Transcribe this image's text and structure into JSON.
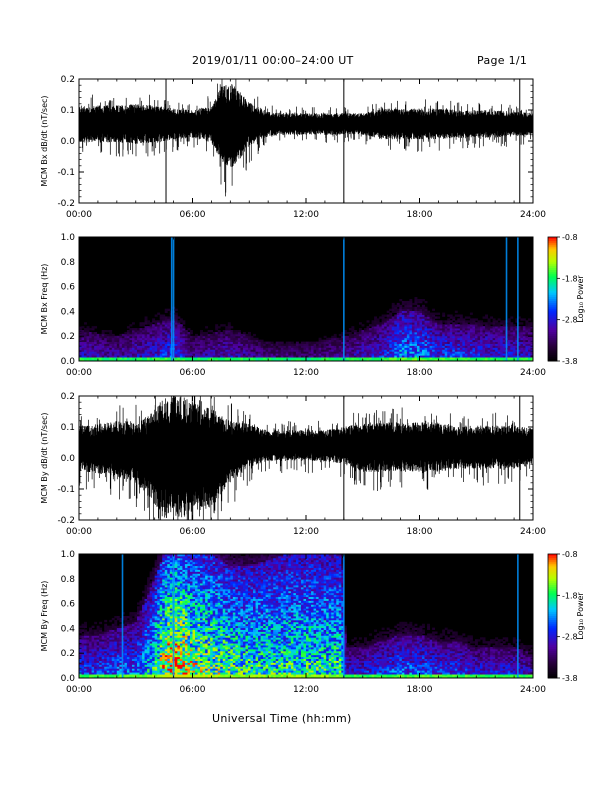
{
  "header": {
    "title": "2019/01/11  00:00–24:00 UT",
    "page": "Page 1/1"
  },
  "chart_data": [
    {
      "type": "line",
      "ylabel": "MCM Bx dB/dt (nT/sec)",
      "xticks": [
        "00:00",
        "06:00",
        "12:00",
        "18:00",
        "24:00"
      ],
      "xlim": [
        0,
        24
      ],
      "ylim": [
        -0.2,
        0.2
      ],
      "yticks": [
        "-0.2",
        "-0.1",
        "0.0",
        "0.1",
        "0.2"
      ],
      "series": [
        {
          "color": "#000000",
          "envelope": {
            "x": [
              0,
              1,
              2,
              3,
              4,
              5,
              6,
              7,
              7.5,
              8,
              8.5,
              9,
              10,
              11,
              12,
              13,
              14,
              15,
              16,
              17,
              18,
              19,
              20,
              21,
              22,
              23,
              24
            ],
            "center": [
              0.055,
              0.055,
              0.055,
              0.055,
              0.055,
              0.055,
              0.055,
              0.055,
              0.055,
              0.05,
              0.05,
              0.055,
              0.055,
              0.055,
              0.055,
              0.055,
              0.055,
              0.055,
              0.055,
              0.055,
              0.055,
              0.055,
              0.055,
              0.055,
              0.055,
              0.055,
              0.055
            ],
            "amplitude": [
              0.06,
              0.06,
              0.06,
              0.065,
              0.06,
              0.05,
              0.045,
              0.06,
              0.12,
              0.14,
              0.11,
              0.07,
              0.04,
              0.035,
              0.035,
              0.035,
              0.035,
              0.035,
              0.05,
              0.05,
              0.05,
              0.05,
              0.045,
              0.045,
              0.045,
              0.04,
              0.035
            ]
          }
        }
      ],
      "spikes_x": [
        4.6,
        14.0,
        23.3
      ]
    },
    {
      "type": "heatmap",
      "ylabel": "MCM Bx Freq (Hz)",
      "xticks": [
        "00:00",
        "06:00",
        "12:00",
        "18:00",
        "24:00"
      ],
      "xlim": [
        0,
        24
      ],
      "ylim": [
        0,
        1.0
      ],
      "yticks": [
        "0.0",
        "0.2",
        "0.4",
        "0.6",
        "0.8",
        "1.0"
      ],
      "colorbar": {
        "label": "Log₁₀ Power",
        "ticks": [
          "-0.8",
          "-1.8",
          "-2.8",
          "-3.8"
        ],
        "range": [
          -3.8,
          -0.8
        ]
      },
      "activity": {
        "x": [
          0,
          2,
          4,
          5,
          6,
          8,
          10,
          12,
          14,
          15,
          16,
          17,
          18,
          19,
          20,
          22,
          24
        ],
        "level": [
          0.35,
          0.3,
          0.4,
          0.45,
          0.3,
          0.35,
          0.25,
          0.25,
          0.3,
          0.35,
          0.4,
          0.55,
          0.55,
          0.45,
          0.45,
          0.4,
          0.35
        ],
        "top_hz": [
          0.25,
          0.2,
          0.3,
          0.35,
          0.2,
          0.25,
          0.15,
          0.15,
          0.2,
          0.25,
          0.3,
          0.4,
          0.4,
          0.3,
          0.3,
          0.28,
          0.28
        ]
      },
      "broadband_lines_x": [
        4.9,
        5.0,
        14.0,
        22.6,
        23.2
      ]
    },
    {
      "type": "line",
      "ylabel": "MCM By dB/dt (nT/sec)",
      "xticks": [
        "00:00",
        "06:00",
        "12:00",
        "18:00",
        "24:00"
      ],
      "xlim": [
        0,
        24
      ],
      "ylim": [
        -0.2,
        0.2
      ],
      "yticks": [
        "-0.2",
        "-0.1",
        "0.0",
        "0.1",
        "0.2"
      ],
      "series": [
        {
          "color": "#000000",
          "envelope": {
            "x": [
              0,
              1,
              2,
              3,
              4,
              4.5,
              5,
              5.5,
              6,
              7,
              8,
              9,
              10,
              11,
              12,
              13,
              14,
              15,
              16,
              17,
              18,
              19,
              20,
              21,
              22,
              23,
              24
            ],
            "center": [
              0.03,
              0.03,
              0.03,
              0.02,
              0.0,
              0.0,
              0.0,
              0.0,
              0.0,
              0.0,
              0.02,
              0.04,
              0.04,
              0.04,
              0.04,
              0.04,
              0.04,
              0.035,
              0.035,
              0.035,
              0.035,
              0.035,
              0.035,
              0.035,
              0.035,
              0.035,
              0.035
            ],
            "amplitude": [
              0.07,
              0.08,
              0.09,
              0.1,
              0.15,
              0.2,
              0.2,
              0.2,
              0.18,
              0.16,
              0.1,
              0.07,
              0.05,
              0.05,
              0.05,
              0.05,
              0.06,
              0.08,
              0.08,
              0.08,
              0.08,
              0.08,
              0.07,
              0.07,
              0.07,
              0.07,
              0.06
            ]
          }
        }
      ],
      "spikes_x": [
        14.0,
        23.3
      ]
    },
    {
      "type": "heatmap",
      "ylabel": "MCM By Freq (Hz)",
      "xticks": [
        "00:00",
        "06:00",
        "12:00",
        "18:00",
        "24:00"
      ],
      "xlim": [
        0,
        24
      ],
      "ylim": [
        0,
        1.0
      ],
      "yticks": [
        "0.0",
        "0.2",
        "0.4",
        "0.6",
        "0.8",
        "1.0"
      ],
      "colorbar": {
        "label": "Log₁₀ Power",
        "ticks": [
          "-0.8",
          "-1.8",
          "-2.8",
          "-3.8"
        ],
        "range": [
          -3.8,
          -0.8
        ]
      },
      "activity": {
        "x": [
          0,
          1,
          2,
          3,
          4,
          4.5,
          5,
          5.5,
          6,
          7,
          8,
          9,
          10,
          11,
          12,
          13,
          13.9,
          14.1,
          15,
          16,
          17,
          18,
          19,
          20,
          21,
          22,
          23,
          24
        ],
        "level": [
          0.45,
          0.45,
          0.5,
          0.5,
          0.7,
          0.9,
          1.0,
          0.95,
          0.85,
          0.8,
          0.75,
          0.7,
          0.7,
          0.7,
          0.7,
          0.7,
          0.7,
          0.4,
          0.4,
          0.45,
          0.5,
          0.5,
          0.45,
          0.45,
          0.4,
          0.4,
          0.4,
          0.35
        ],
        "top_hz": [
          0.35,
          0.35,
          0.4,
          0.45,
          0.8,
          1.0,
          1.0,
          1.0,
          1.0,
          1.0,
          0.9,
          0.9,
          0.95,
          1.0,
          1.0,
          1.0,
          1.0,
          0.25,
          0.25,
          0.3,
          0.35,
          0.35,
          0.3,
          0.3,
          0.25,
          0.25,
          0.25,
          0.2
        ]
      },
      "broadband_lines_x": [
        2.3,
        5.0,
        14.0,
        23.2
      ]
    }
  ],
  "xaxis": {
    "label": "Universal Time (hh:mm)"
  }
}
